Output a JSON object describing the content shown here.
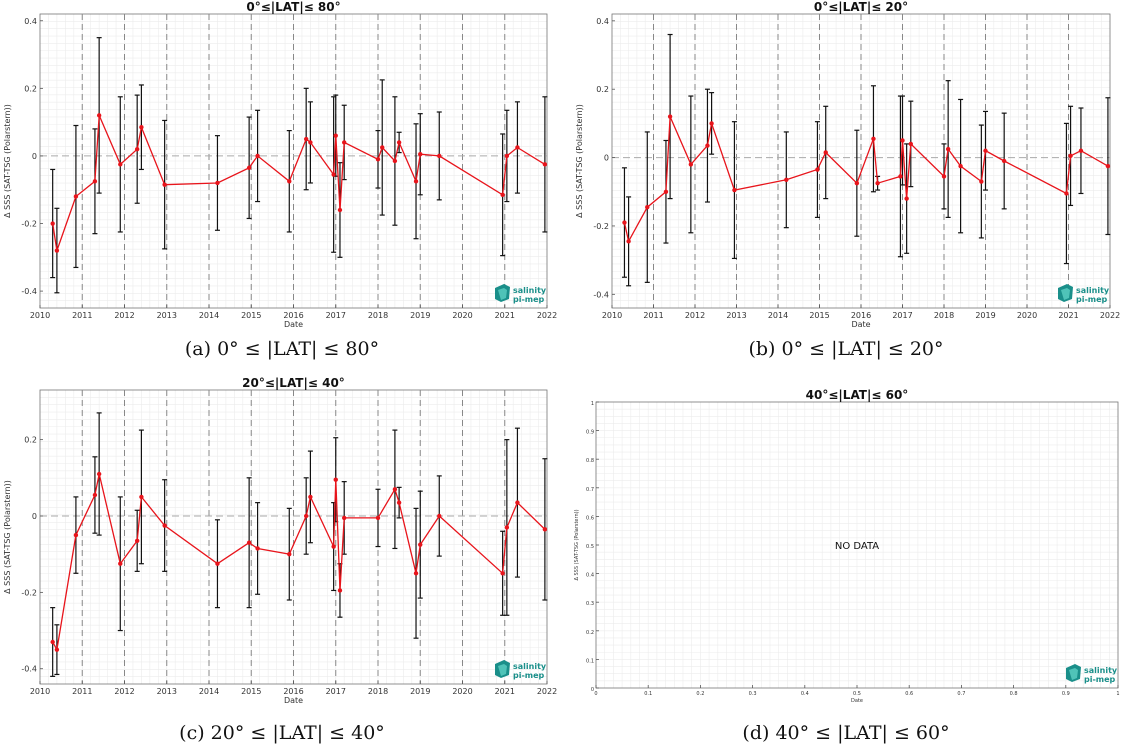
{
  "chart_data": [
    {
      "type": "line",
      "title": "0°≤|LAT|≤ 80°",
      "xlabel": "Date",
      "ylabel": "Δ SSS (SAT-TSG (Polarstern))",
      "xlim": [
        2010,
        2022
      ],
      "ylim": [
        -0.45,
        0.42
      ],
      "x_ticks": [
        2010,
        2011,
        2012,
        2013,
        2014,
        2015,
        2016,
        2017,
        2018,
        2019,
        2020,
        2021,
        2022
      ],
      "y_ticks": [
        -0.4,
        -0.2,
        0,
        0.2,
        0.4
      ],
      "y_tick_labels": [
        "-0.4",
        "-0.2",
        "0",
        "0.2",
        "0.4"
      ],
      "dashed_vlines": [
        2011,
        2012,
        2013,
        2014,
        2015,
        2016,
        2017,
        2018,
        2019,
        2020,
        2021
      ],
      "series": [
        {
          "points": [
            {
              "x": 2010.3,
              "y": -0.2,
              "err": 0.16
            },
            {
              "x": 2010.4,
              "y": -0.28,
              "err": 0.125
            },
            {
              "x": 2010.85,
              "y": -0.12,
              "err": 0.21
            },
            {
              "x": 2011.3,
              "y": -0.075,
              "err": 0.155
            },
            {
              "x": 2011.4,
              "y": 0.12,
              "err": 0.23
            },
            {
              "x": 2011.9,
              "y": -0.025,
              "err": 0.2
            },
            {
              "x": 2012.3,
              "y": 0.02,
              "err": 0.16
            },
            {
              "x": 2012.4,
              "y": 0.085,
              "err": 0.125
            },
            {
              "x": 2012.95,
              "y": -0.085,
              "err": 0.19
            },
            {
              "x": 2014.2,
              "y": -0.08,
              "err": 0.14
            },
            {
              "x": 2014.95,
              "y": -0.035,
              "err": 0.15
            },
            {
              "x": 2015.15,
              "y": 0.0,
              "err": 0.135
            },
            {
              "x": 2015.9,
              "y": -0.075,
              "err": 0.15
            },
            {
              "x": 2016.3,
              "y": 0.05,
              "err": 0.15
            },
            {
              "x": 2016.4,
              "y": 0.04,
              "err": 0.12
            },
            {
              "x": 2016.95,
              "y": -0.055,
              "err": 0.23
            },
            {
              "x": 2017.0,
              "y": 0.06,
              "err": 0.12
            },
            {
              "x": 2017.1,
              "y": -0.16,
              "err": 0.14
            },
            {
              "x": 2017.2,
              "y": 0.04,
              "err": 0.11
            },
            {
              "x": 2018.0,
              "y": -0.01,
              "err": 0.085
            },
            {
              "x": 2018.1,
              "y": 0.025,
              "err": 0.2
            },
            {
              "x": 2018.4,
              "y": -0.015,
              "err": 0.19
            },
            {
              "x": 2018.5,
              "y": 0.04,
              "err": 0.03
            },
            {
              "x": 2018.9,
              "y": -0.075,
              "err": 0.17
            },
            {
              "x": 2019.0,
              "y": 0.005,
              "err": 0.12
            },
            {
              "x": 2019.45,
              "y": 0.0,
              "err": 0.13
            },
            {
              "x": 2020.95,
              "y": -0.115,
              "err": 0.18
            },
            {
              "x": 2021.05,
              "y": 0.0,
              "err": 0.135
            },
            {
              "x": 2021.3,
              "y": 0.025,
              "err": 0.135
            },
            {
              "x": 2021.95,
              "y": -0.025,
              "err": 0.2
            }
          ]
        }
      ],
      "caption": "(a) 0° ≤ |LAT| ≤ 80°"
    },
    {
      "type": "line",
      "title": "0°≤|LAT|≤ 20°",
      "xlabel": "Date",
      "ylabel": "Δ SSS (SAT-TSG (Polarstern))",
      "xlim": [
        2010,
        2022
      ],
      "ylim": [
        -0.44,
        0.42
      ],
      "x_ticks": [
        2010,
        2011,
        2012,
        2013,
        2014,
        2015,
        2016,
        2017,
        2018,
        2019,
        2020,
        2021,
        2022
      ],
      "y_ticks": [
        -0.4,
        -0.2,
        0,
        0.2,
        0.4
      ],
      "y_tick_labels": [
        "-0.4",
        "-0.2",
        "0",
        "0.2",
        "0.4"
      ],
      "dashed_vlines": [
        2011,
        2012,
        2013,
        2014,
        2015,
        2016,
        2017,
        2018,
        2019,
        2020,
        2021
      ],
      "series": [
        {
          "points": [
            {
              "x": 2010.3,
              "y": -0.19,
              "err": 0.16
            },
            {
              "x": 2010.4,
              "y": -0.245,
              "err": 0.13
            },
            {
              "x": 2010.85,
              "y": -0.145,
              "err": 0.22
            },
            {
              "x": 2011.3,
              "y": -0.1,
              "err": 0.15
            },
            {
              "x": 2011.4,
              "y": 0.12,
              "err": 0.24
            },
            {
              "x": 2011.9,
              "y": -0.02,
              "err": 0.2
            },
            {
              "x": 2012.3,
              "y": 0.035,
              "err": 0.165
            },
            {
              "x": 2012.4,
              "y": 0.1,
              "err": 0.09
            },
            {
              "x": 2012.95,
              "y": -0.095,
              "err": 0.2
            },
            {
              "x": 2014.2,
              "y": -0.065,
              "err": 0.14
            },
            {
              "x": 2014.95,
              "y": -0.035,
              "err": 0.14
            },
            {
              "x": 2015.15,
              "y": 0.015,
              "err": 0.135
            },
            {
              "x": 2015.9,
              "y": -0.075,
              "err": 0.155
            },
            {
              "x": 2016.3,
              "y": 0.055,
              "err": 0.155
            },
            {
              "x": 2016.4,
              "y": -0.075,
              "err": 0.02
            },
            {
              "x": 2016.95,
              "y": -0.055,
              "err": 0.235
            },
            {
              "x": 2017.0,
              "y": 0.05,
              "err": 0.13
            },
            {
              "x": 2017.1,
              "y": -0.12,
              "err": 0.16
            },
            {
              "x": 2017.2,
              "y": 0.04,
              "err": 0.125
            },
            {
              "x": 2018.0,
              "y": -0.055,
              "err": 0.095
            },
            {
              "x": 2018.1,
              "y": 0.025,
              "err": 0.2
            },
            {
              "x": 2018.4,
              "y": -0.025,
              "err": 0.195
            },
            {
              "x": 2018.9,
              "y": -0.07,
              "err": 0.165
            },
            {
              "x": 2019.0,
              "y": 0.02,
              "err": 0.115
            },
            {
              "x": 2019.45,
              "y": -0.01,
              "err": 0.14
            },
            {
              "x": 2020.95,
              "y": -0.105,
              "err": 0.205
            },
            {
              "x": 2021.05,
              "y": 0.005,
              "err": 0.145
            },
            {
              "x": 2021.3,
              "y": 0.02,
              "err": 0.125
            },
            {
              "x": 2021.95,
              "y": -0.025,
              "err": 0.2
            }
          ]
        }
      ],
      "caption": "(b) 0° ≤ |LAT| ≤ 20°"
    },
    {
      "type": "line",
      "title": "20°≤|LAT|≤ 40°",
      "xlabel": "Date",
      "ylabel": "Δ SSS (SAT-TSG (Polarstern))",
      "xlim": [
        2010,
        2022
      ],
      "ylim": [
        -0.44,
        0.33
      ],
      "x_ticks": [
        2010,
        2011,
        2012,
        2013,
        2014,
        2015,
        2016,
        2017,
        2018,
        2019,
        2020,
        2021,
        2022
      ],
      "y_ticks": [
        -0.4,
        -0.2,
        0,
        0.2
      ],
      "y_tick_labels": [
        "-0.4",
        "-0.2",
        "0",
        "0.2"
      ],
      "dashed_vlines": [
        2011,
        2012,
        2013,
        2014,
        2015,
        2016,
        2017,
        2018,
        2019,
        2020,
        2021
      ],
      "series": [
        {
          "points": [
            {
              "x": 2010.3,
              "y": -0.33,
              "err": 0.09
            },
            {
              "x": 2010.4,
              "y": -0.35,
              "err": 0.065
            },
            {
              "x": 2010.85,
              "y": -0.05,
              "err": 0.1
            },
            {
              "x": 2011.3,
              "y": 0.055,
              "err": 0.1
            },
            {
              "x": 2011.4,
              "y": 0.11,
              "err": 0.16
            },
            {
              "x": 2011.9,
              "y": -0.125,
              "err": 0.175
            },
            {
              "x": 2012.3,
              "y": -0.065,
              "err": 0.08
            },
            {
              "x": 2012.4,
              "y": 0.05,
              "err": 0.175
            },
            {
              "x": 2012.95,
              "y": -0.025,
              "err": 0.12
            },
            {
              "x": 2014.2,
              "y": -0.125,
              "err": 0.115
            },
            {
              "x": 2014.95,
              "y": -0.07,
              "err": 0.17
            },
            {
              "x": 2015.15,
              "y": -0.085,
              "err": 0.12
            },
            {
              "x": 2015.9,
              "y": -0.1,
              "err": 0.12
            },
            {
              "x": 2016.3,
              "y": 0.0,
              "err": 0.1
            },
            {
              "x": 2016.4,
              "y": 0.05,
              "err": 0.12
            },
            {
              "x": 2016.95,
              "y": -0.08,
              "err": 0.115
            },
            {
              "x": 2017.0,
              "y": 0.095,
              "err": 0.11
            },
            {
              "x": 2017.1,
              "y": -0.195,
              "err": 0.07
            },
            {
              "x": 2017.2,
              "y": -0.005,
              "err": 0.095
            },
            {
              "x": 2018.0,
              "y": -0.005,
              "err": 0.075
            },
            {
              "x": 2018.4,
              "y": 0.07,
              "err": 0.155
            },
            {
              "x": 2018.5,
              "y": 0.035,
              "err": 0.04
            },
            {
              "x": 2018.9,
              "y": -0.15,
              "err": 0.17
            },
            {
              "x": 2019.0,
              "y": -0.075,
              "err": 0.14
            },
            {
              "x": 2019.45,
              "y": 0.0,
              "err": 0.105
            },
            {
              "x": 2020.95,
              "y": -0.15,
              "err": 0.11
            },
            {
              "x": 2021.05,
              "y": -0.03,
              "err": 0.23
            },
            {
              "x": 2021.3,
              "y": 0.035,
              "err": 0.195
            },
            {
              "x": 2021.95,
              "y": -0.035,
              "err": 0.185
            }
          ]
        }
      ],
      "caption": "(c) 20° ≤ |LAT| ≤ 40°"
    },
    {
      "type": "line",
      "title": "40°≤|LAT|≤ 60°",
      "xlabel": "Date",
      "ylabel": "Δ SSS (SAT-TSG (Polarstern))",
      "xlim": [
        0,
        1
      ],
      "ylim": [
        0,
        1
      ],
      "x_ticks": [
        0,
        0.1,
        0.2,
        0.3,
        0.4,
        0.5,
        0.6,
        0.7,
        0.8,
        0.9,
        1
      ],
      "y_ticks": [
        0,
        0.1,
        0.2,
        0.3,
        0.4,
        0.5,
        0.6,
        0.7,
        0.8,
        0.9,
        1
      ],
      "x_tick_labels": [
        "0",
        "0.1",
        "0.2",
        "0.3",
        "0.4",
        "0.5",
        "0.6",
        "0.7",
        "0.8",
        "0.9",
        "1"
      ],
      "y_tick_labels": [
        "0",
        "0.1",
        "0.2",
        "0.3",
        "0.4",
        "0.5",
        "0.6",
        "0.7",
        "0.8",
        "0.9",
        "1"
      ],
      "annotation": "NO DATA",
      "series": [],
      "caption": "(d) 40° ≤ |LAT| ≤ 60°"
    }
  ],
  "logo": {
    "line1": "salinity",
    "line2": "pi-mep",
    "color": "#1a8f8a"
  },
  "colors": {
    "series": "#e8141b",
    "errorbar": "#111111",
    "zero_line": "#aaaaaa",
    "dashed": "#888888",
    "grid": "#ececec"
  }
}
